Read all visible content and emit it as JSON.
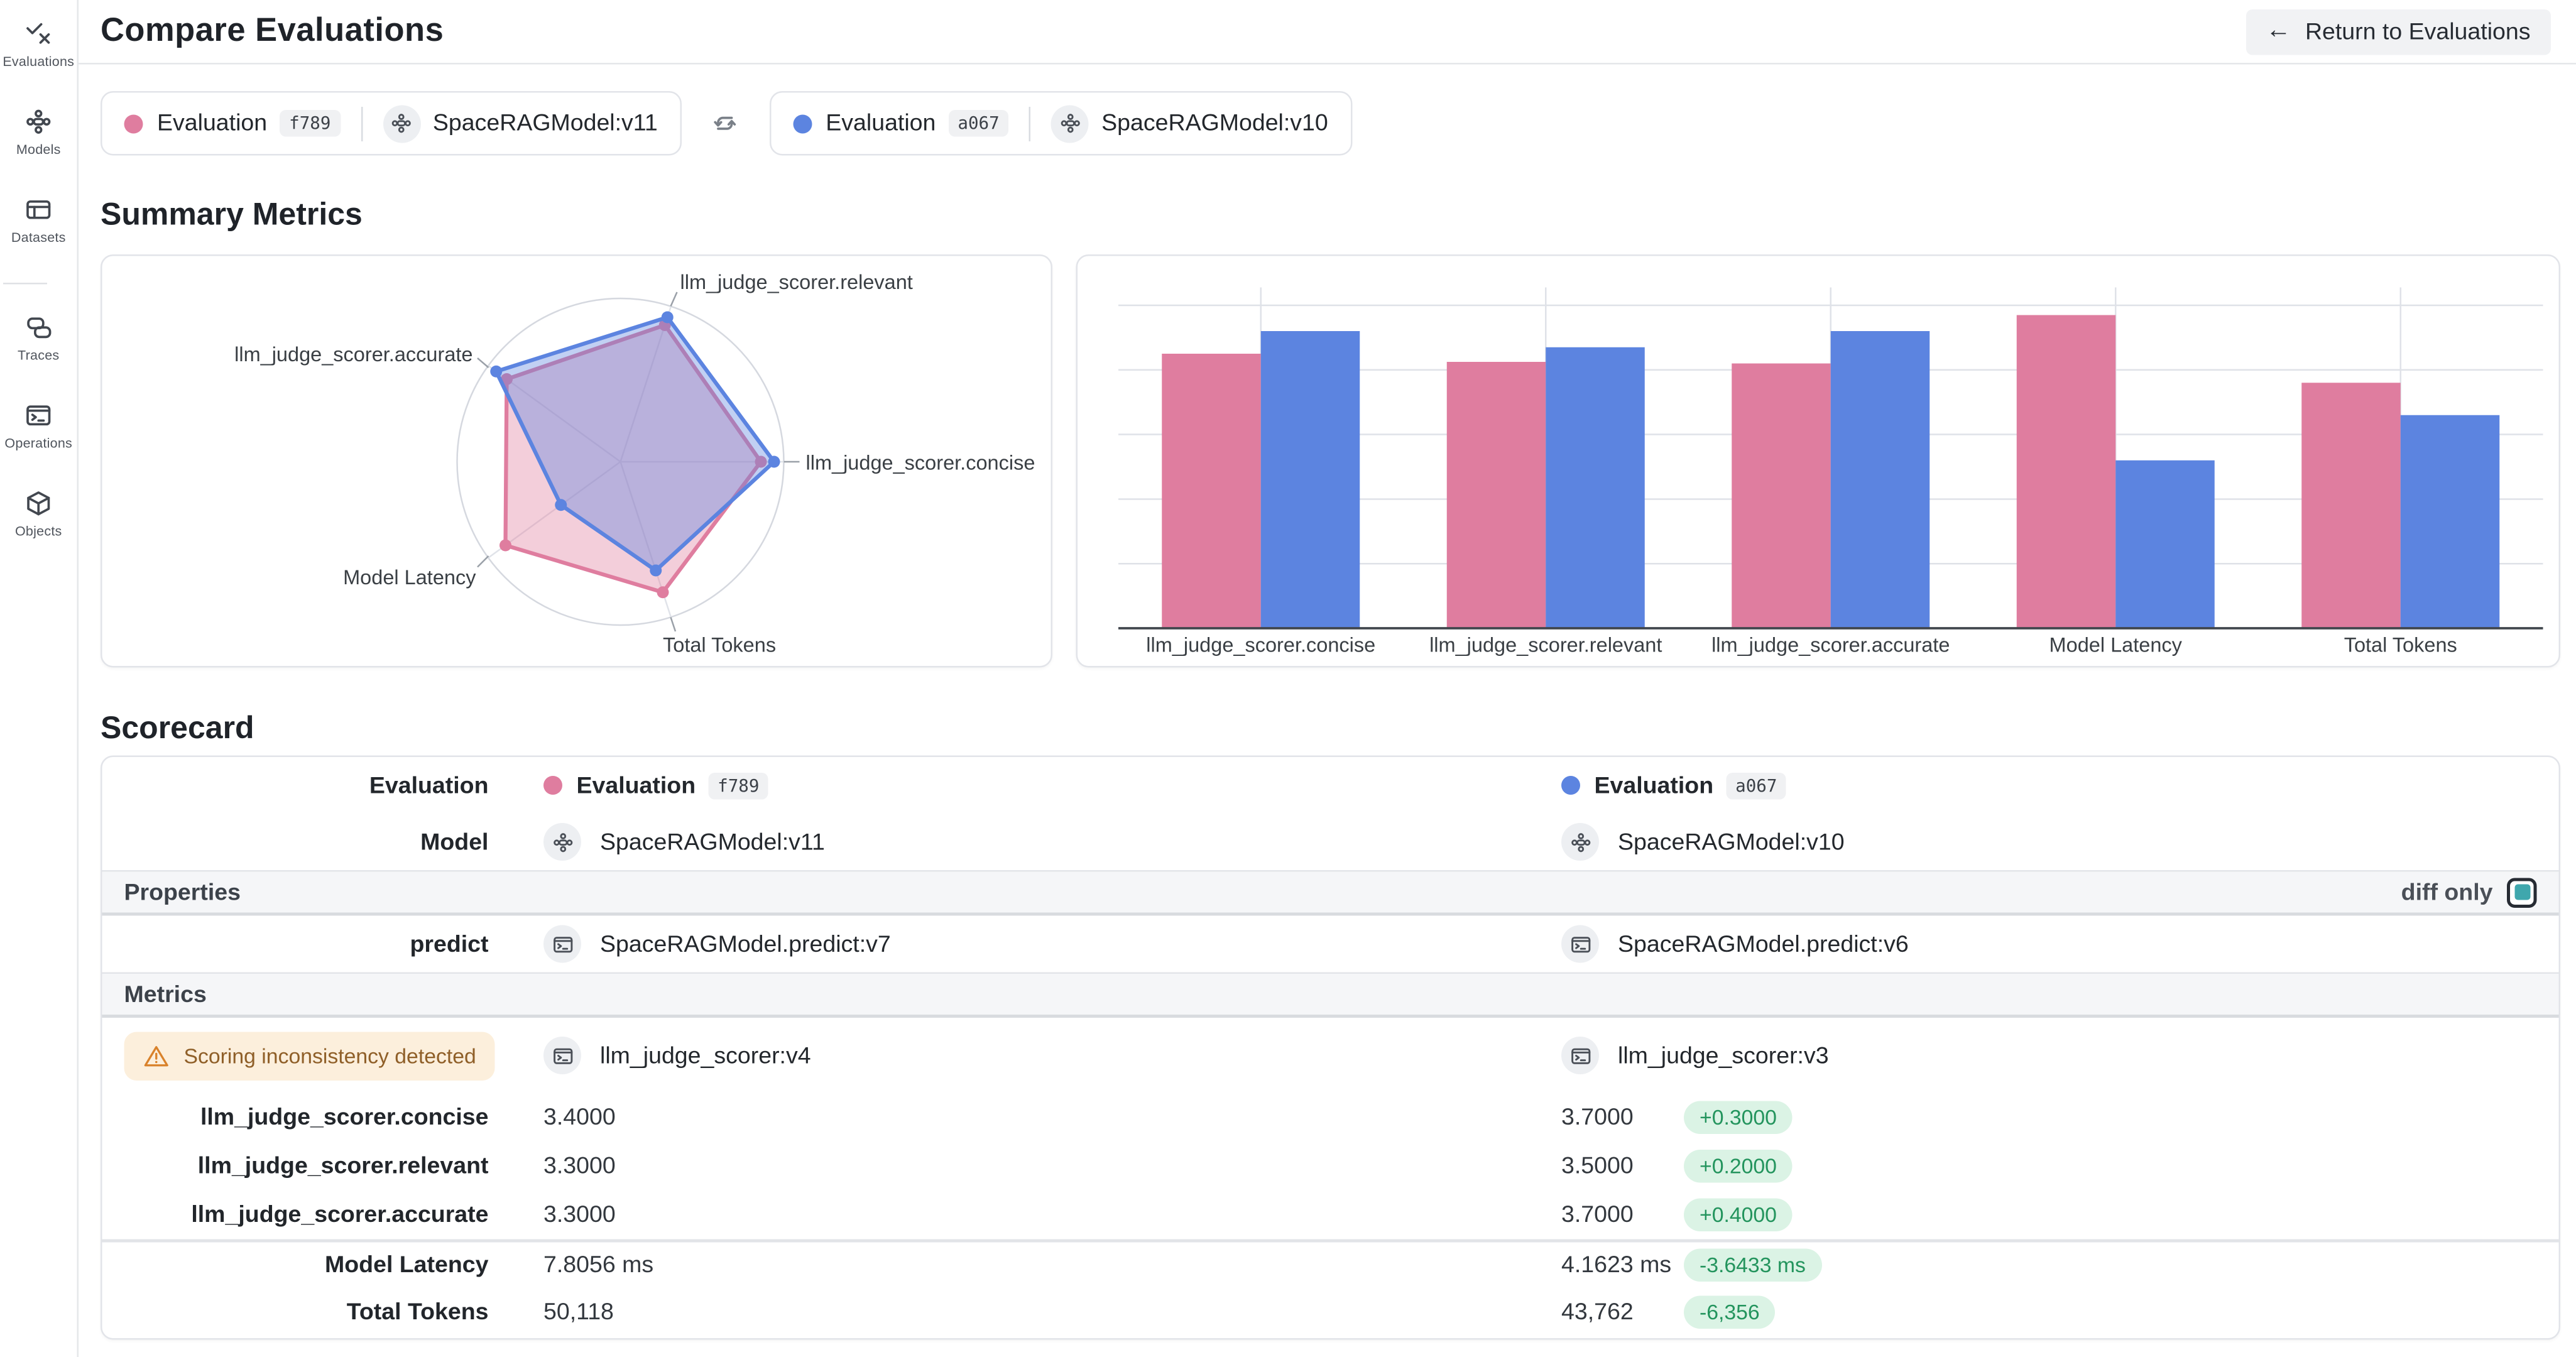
{
  "header": {
    "title": "Compare Evaluations",
    "return_button": "Return to Evaluations"
  },
  "sidebar": {
    "items": [
      {
        "id": "evaluations",
        "label": "Evaluations",
        "icon": "evaluations"
      },
      {
        "id": "models",
        "label": "Models",
        "icon": "models"
      },
      {
        "id": "datasets",
        "label": "Datasets",
        "icon": "datasets"
      },
      {
        "divider": true
      },
      {
        "id": "traces",
        "label": "Traces",
        "icon": "traces"
      },
      {
        "id": "operations",
        "label": "Operations",
        "icon": "operations"
      },
      {
        "id": "objects",
        "label": "Objects",
        "icon": "objects"
      }
    ]
  },
  "compare_bar": {
    "pills": [
      {
        "dot_color": "#df7d9f",
        "label": "Evaluation",
        "badge": "f789",
        "model": "SpaceRAGModel:v11"
      },
      {
        "dot_color": "#5c84e0",
        "label": "Evaluation",
        "badge": "a067",
        "model": "SpaceRAGModel:v10"
      }
    ]
  },
  "sections": {
    "summary": "Summary Metrics",
    "scorecard": "Scorecard"
  },
  "colors": {
    "eval1_pink": "#df7d9f",
    "eval2_blue": "#5c84e0",
    "diff_pill_bg": "#dbf3e5",
    "diff_pill_text": "#23945d",
    "warning_bg": "#fcefdc",
    "warning_icon": "#d9822b",
    "checkbox_fill": "#3fa7ad"
  },
  "chart_data": [
    {
      "type": "radar",
      "axes": [
        "llm_judge_scorer.concise",
        "llm_judge_scorer.relevant",
        "llm_judge_scorer.accurate",
        "Model Latency",
        "Total Tokens"
      ],
      "rings": 1,
      "legend": false,
      "series": [
        {
          "name": "Evaluation f789",
          "color": "#df7d9f",
          "values_normalized": [
            0.86,
            0.88,
            0.86,
            0.87,
            0.84
          ],
          "values_actual": [
            3.4,
            3.3,
            3.3,
            "7.8056 ms",
            50118
          ]
        },
        {
          "name": "Evaluation a067",
          "color": "#5c84e0",
          "values_normalized": [
            0.94,
            0.93,
            0.94,
            0.45,
            0.7
          ],
          "values_actual": [
            3.7,
            3.5,
            3.7,
            "4.1623 ms",
            43762
          ]
        }
      ]
    },
    {
      "type": "bar",
      "categories": [
        "llm_judge_scorer.concise",
        "llm_judge_scorer.relevant",
        "llm_judge_scorer.accurate",
        "Model Latency",
        "Total Tokens"
      ],
      "grid": true,
      "yticks_shown": false,
      "legend": false,
      "ylim": [
        0,
        1.08
      ],
      "series": [
        {
          "name": "Evaluation f789",
          "color": "#df7d9f",
          "values_normalized": [
            0.85,
            0.825,
            0.82,
            0.97,
            0.76
          ],
          "values_actual": [
            3.4,
            3.3,
            3.3,
            "7.8056 ms",
            50118
          ]
        },
        {
          "name": "Evaluation a067",
          "color": "#5c84e0",
          "values_normalized": [
            0.92,
            0.87,
            0.92,
            0.52,
            0.66
          ],
          "values_actual": [
            3.7,
            3.5,
            3.7,
            "4.1623 ms",
            43762
          ]
        }
      ]
    }
  ],
  "scorecard": {
    "diff_only_label": "diff only",
    "diff_only_checked": true,
    "rows": [
      {
        "type": "kv",
        "label": "Evaluation",
        "left": {
          "kind": "eval",
          "dot_color": "#df7d9f",
          "text": "Evaluation",
          "badge": "f789"
        },
        "right": {
          "kind": "eval",
          "dot_color": "#5c84e0",
          "text": "Evaluation",
          "badge": "a067"
        }
      },
      {
        "type": "kv",
        "label": "Model",
        "left": {
          "kind": "ref",
          "icon": "model",
          "text": "SpaceRAGModel:v11"
        },
        "right": {
          "kind": "ref",
          "icon": "model",
          "text": "SpaceRAGModel:v10"
        }
      },
      {
        "type": "section",
        "label": "Properties",
        "has_diff_toggle": true
      },
      {
        "type": "kv",
        "label": "predict",
        "left": {
          "kind": "ref",
          "icon": "op",
          "text": "SpaceRAGModel.predict:v7"
        },
        "right": {
          "kind": "ref",
          "icon": "op",
          "text": "SpaceRAGModel.predict:v6"
        }
      },
      {
        "type": "section",
        "label": "Metrics"
      },
      {
        "type": "scorer",
        "warning": "Scoring inconsistency detected",
        "left": {
          "kind": "ref",
          "icon": "op",
          "text": "llm_judge_scorer:v4"
        },
        "right": {
          "kind": "ref",
          "icon": "op",
          "text": "llm_judge_scorer:v3"
        }
      },
      {
        "type": "metric",
        "label": "llm_judge_scorer.concise",
        "left": "3.4000",
        "right": "3.7000",
        "diff": "+0.3000"
      },
      {
        "type": "metric",
        "label": "llm_judge_scorer.relevant",
        "left": "3.3000",
        "right": "3.5000",
        "diff": "+0.2000"
      },
      {
        "type": "metric",
        "label": "llm_judge_scorer.accurate",
        "left": "3.3000",
        "right": "3.7000",
        "diff": "+0.4000"
      },
      {
        "type": "metric",
        "label": "Model Latency",
        "left": "7.8056 ms",
        "right": "4.1623 ms",
        "diff": "-3.6433 ms",
        "group_start": true
      },
      {
        "type": "metric",
        "label": "Total Tokens",
        "left": "50,118",
        "right": "43,762",
        "diff": "-6,356"
      }
    ]
  }
}
